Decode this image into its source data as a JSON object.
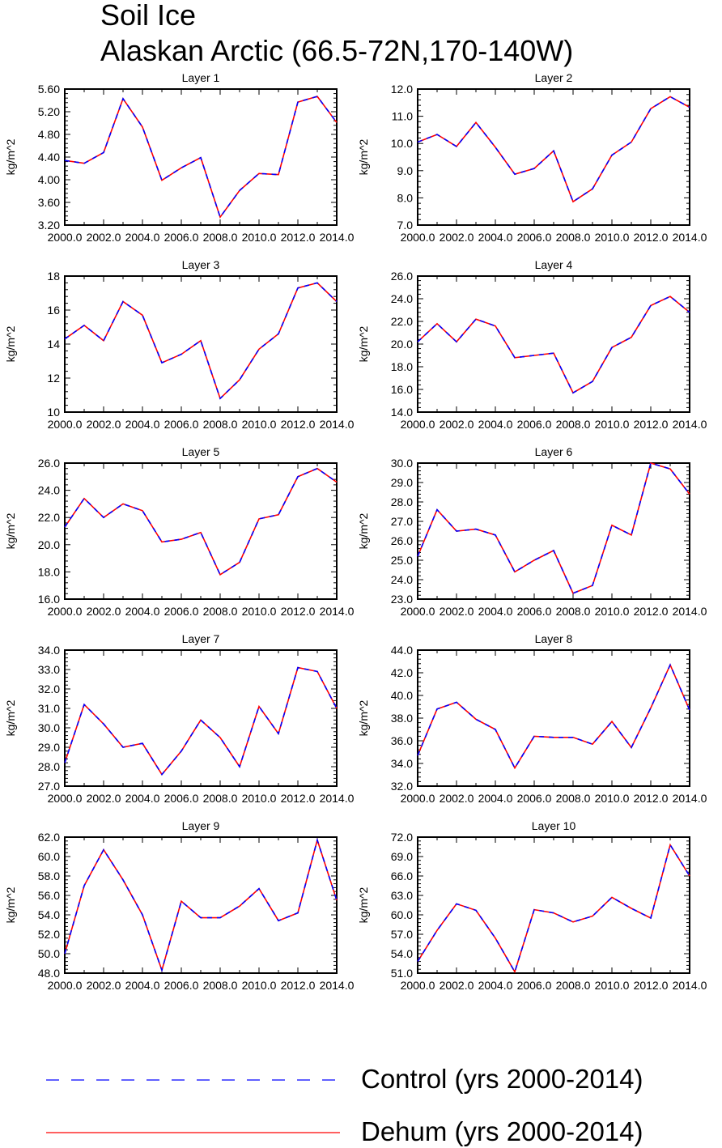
{
  "title": {
    "line1": "Soil Ice",
    "line2": "Alaskan Arctic (66.5-72N,170-140W)"
  },
  "chart_data": {
    "type": "line",
    "x": [
      2000,
      2001,
      2002,
      2003,
      2004,
      2005,
      2006,
      2007,
      2008,
      2009,
      2010,
      2011,
      2012,
      2013,
      2014
    ],
    "xlim": [
      2000,
      2014
    ],
    "xticks": [
      "2000.0",
      "2002.0",
      "2004.0",
      "2006.0",
      "2008.0",
      "2010.0",
      "2012.0",
      "2014.0"
    ],
    "ylabel": "kg/m^2",
    "series_names": [
      "Control (yrs 2000-2014)",
      "Dehum (yrs 2000-2014)"
    ],
    "series_colors": {
      "control": "#0000ff",
      "dehum": "#ff0000"
    },
    "panels": [
      {
        "title": "Layer 1",
        "ylim": [
          3.2,
          5.6
        ],
        "yticks": [
          "3.20",
          "3.60",
          "4.00",
          "4.40",
          "4.80",
          "5.20",
          "5.60"
        ],
        "values": [
          4.34,
          4.29,
          4.48,
          5.43,
          4.93,
          3.99,
          4.21,
          4.39,
          3.34,
          3.81,
          4.11,
          4.09,
          5.37,
          5.47,
          5.01
        ]
      },
      {
        "title": "Layer 2",
        "ylim": [
          7.0,
          12.0
        ],
        "yticks": [
          "7.0",
          "8.0",
          "9.0",
          "10.0",
          "11.0",
          "12.0"
        ],
        "values": [
          10.05,
          10.33,
          9.89,
          10.77,
          9.86,
          8.87,
          9.08,
          9.73,
          7.86,
          8.33,
          9.57,
          10.05,
          11.28,
          11.72,
          11.33
        ]
      },
      {
        "title": "Layer 3",
        "ylim": [
          10,
          18
        ],
        "yticks": [
          "10",
          "12",
          "14",
          "16",
          "18"
        ],
        "values": [
          14.3,
          15.1,
          14.2,
          16.5,
          15.7,
          12.9,
          13.4,
          14.2,
          10.8,
          11.9,
          13.7,
          14.6,
          17.3,
          17.6,
          16.5
        ]
      },
      {
        "title": "Layer 4",
        "ylim": [
          14.0,
          26.0
        ],
        "yticks": [
          "14.0",
          "16.0",
          "18.0",
          "20.0",
          "22.0",
          "24.0",
          "26.0"
        ],
        "values": [
          20.2,
          21.8,
          20.2,
          22.2,
          21.6,
          18.8,
          19.0,
          19.2,
          15.7,
          16.7,
          19.7,
          20.6,
          23.4,
          24.2,
          22.8
        ]
      },
      {
        "title": "Layer 5",
        "ylim": [
          16.0,
          26.0
        ],
        "yticks": [
          "16.0",
          "18.0",
          "20.0",
          "22.0",
          "24.0",
          "26.0"
        ],
        "values": [
          21.3,
          23.4,
          22.0,
          23.0,
          22.5,
          20.2,
          20.4,
          20.9,
          17.8,
          18.7,
          21.9,
          22.2,
          25.0,
          25.6,
          24.6
        ]
      },
      {
        "title": "Layer 6",
        "ylim": [
          23.0,
          30.0
        ],
        "yticks": [
          "23.0",
          "24.0",
          "25.0",
          "26.0",
          "27.0",
          "28.0",
          "29.0",
          "30.0"
        ],
        "values": [
          25.2,
          27.6,
          26.5,
          26.6,
          26.3,
          24.4,
          25.0,
          25.5,
          23.3,
          23.7,
          26.8,
          26.3,
          30.0,
          29.7,
          28.4
        ]
      },
      {
        "title": "Layer 7",
        "ylim": [
          27.0,
          34.0
        ],
        "yticks": [
          "27.0",
          "28.0",
          "29.0",
          "30.0",
          "31.0",
          "32.0",
          "33.0",
          "34.0"
        ],
        "values": [
          28.2,
          31.2,
          30.2,
          29.0,
          29.2,
          27.6,
          28.8,
          30.4,
          29.5,
          28.0,
          31.1,
          29.7,
          33.1,
          32.9,
          31.0
        ]
      },
      {
        "title": "Layer 8",
        "ylim": [
          32.0,
          44.0
        ],
        "yticks": [
          "32.0",
          "34.0",
          "36.0",
          "38.0",
          "40.0",
          "42.0",
          "44.0"
        ],
        "values": [
          34.7,
          38.8,
          39.4,
          37.9,
          37.0,
          33.6,
          36.4,
          36.3,
          36.3,
          35.7,
          37.7,
          35.4,
          38.9,
          42.7,
          38.7
        ]
      },
      {
        "title": "Layer 9",
        "ylim": [
          48.0,
          62.0
        ],
        "yticks": [
          "48.0",
          "50.0",
          "52.0",
          "54.0",
          "56.0",
          "58.0",
          "60.0",
          "62.0"
        ],
        "values": [
          50.0,
          57.0,
          60.7,
          57.6,
          54.0,
          48.3,
          55.4,
          53.7,
          53.7,
          54.9,
          56.7,
          53.4,
          54.2,
          61.7,
          55.5
        ]
      },
      {
        "title": "Layer 10",
        "ylim": [
          51.0,
          72.0
        ],
        "yticks": [
          "51.0",
          "54.0",
          "57.0",
          "60.0",
          "63.0",
          "66.0",
          "69.0",
          "72.0"
        ],
        "values": [
          52.8,
          57.6,
          61.7,
          60.7,
          56.4,
          51.2,
          60.8,
          60.3,
          58.9,
          59.8,
          62.7,
          61.0,
          59.5,
          70.8,
          66.0
        ]
      }
    ]
  }
}
